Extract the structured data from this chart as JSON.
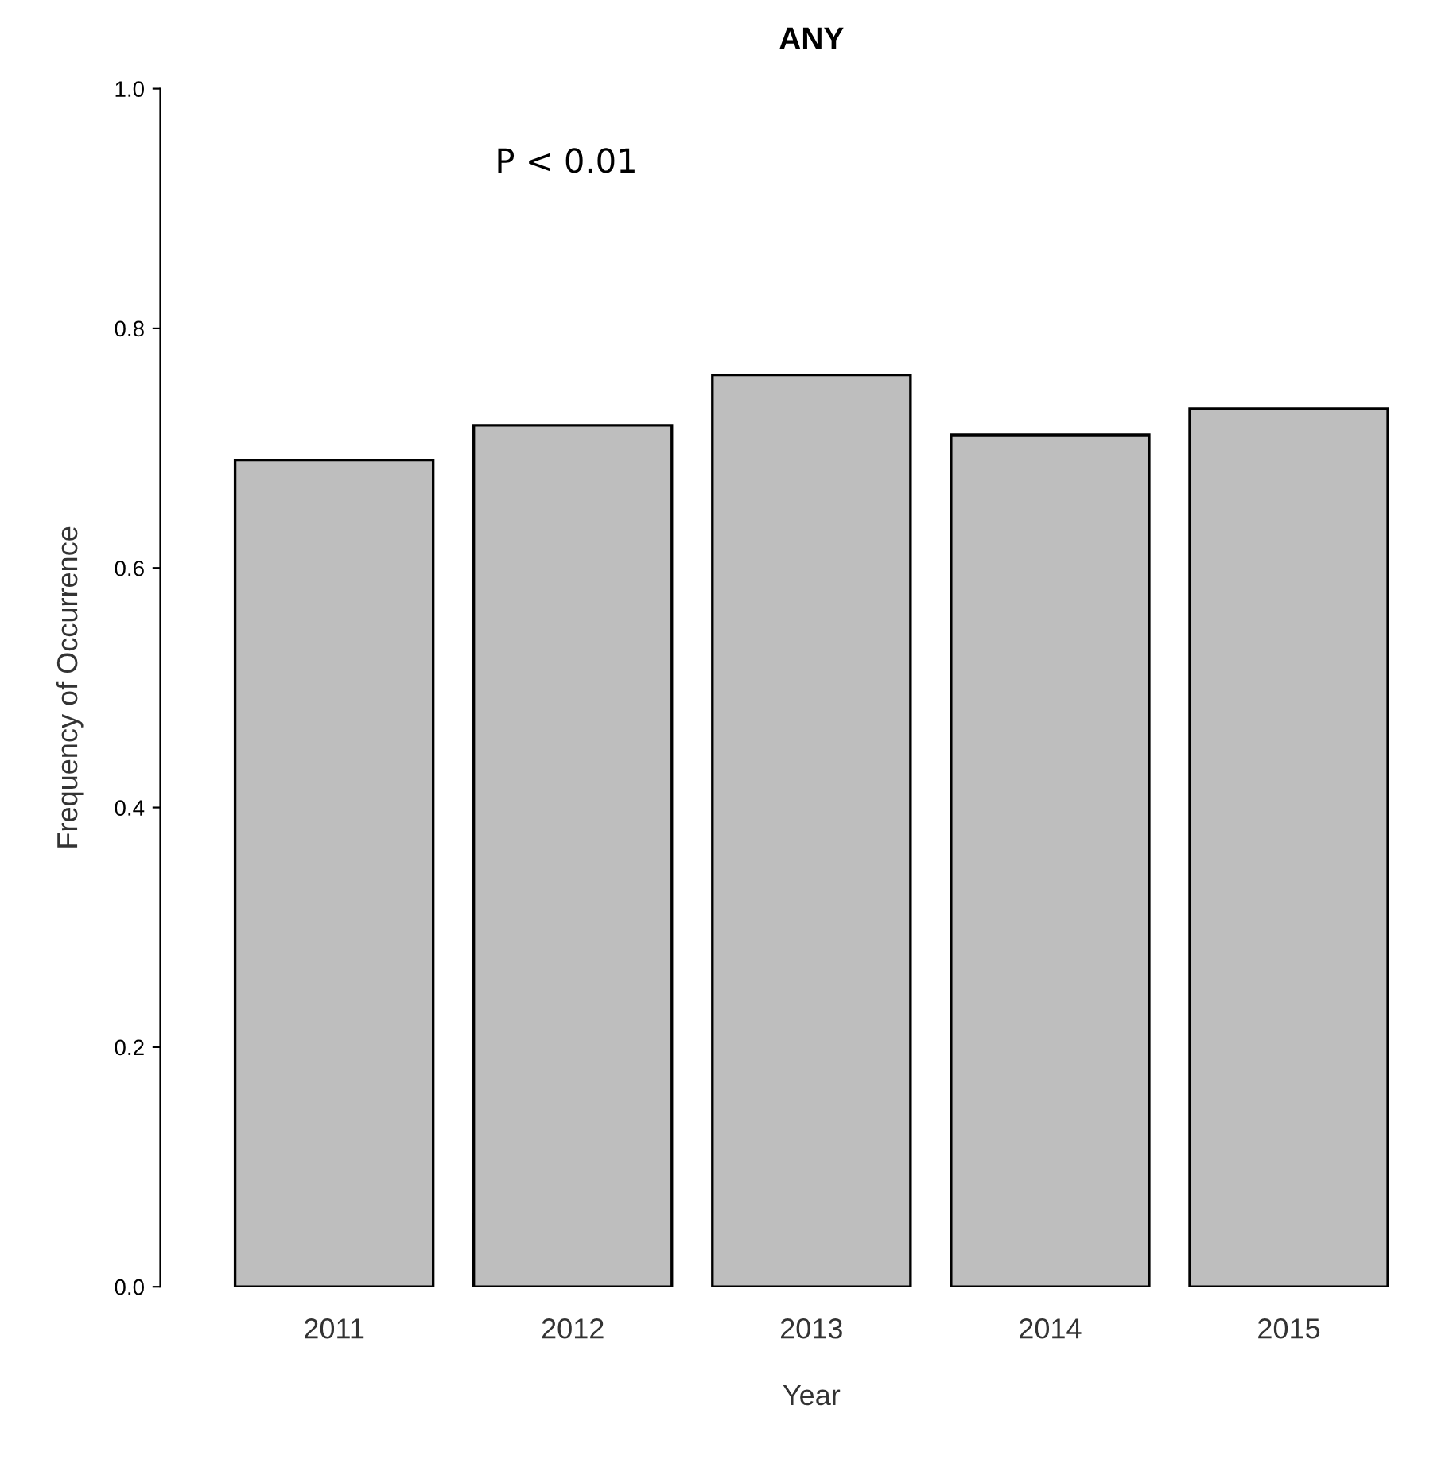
{
  "chart_data": {
    "type": "bar",
    "title": "ANY",
    "xlabel": "Year",
    "ylabel": "Frequency of Occurrence",
    "categories": [
      "2011",
      "2012",
      "2013",
      "2014",
      "2015"
    ],
    "values": [
      0.69,
      0.719,
      0.761,
      0.711,
      0.733
    ],
    "color": "#bebebe",
    "ylim": [
      0,
      1
    ],
    "yticks": [
      {
        "value": 0,
        "label": "0.0"
      },
      {
        "value": 0.2,
        "label": "0.2"
      },
      {
        "value": 0.4,
        "label": "0.4"
      },
      {
        "value": 0.6,
        "label": "0.6"
      },
      {
        "value": 0.8,
        "label": "0.8"
      },
      {
        "value": 1,
        "label": "1.0"
      }
    ],
    "grid": false,
    "annotations": [
      "P < 0.01"
    ]
  }
}
